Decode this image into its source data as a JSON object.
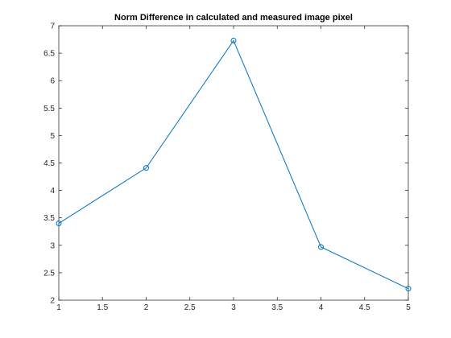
{
  "chart_data": {
    "type": "line",
    "title": "Norm Difference in calculated and measured image pixel",
    "xlabel": "",
    "ylabel": "",
    "xlim": [
      1,
      5
    ],
    "ylim": [
      2,
      7
    ],
    "xticks": [
      1,
      1.5,
      2,
      2.5,
      3,
      3.5,
      4,
      4.5,
      5
    ],
    "xtick_labels": [
      "1",
      "1.5",
      "2",
      "2.5",
      "3",
      "3.5",
      "4",
      "4.5",
      "5"
    ],
    "yticks": [
      2,
      2.5,
      3,
      3.5,
      4,
      4.5,
      5,
      5.5,
      6,
      6.5,
      7
    ],
    "ytick_labels": [
      "2",
      "2.5",
      "3",
      "3.5",
      "4",
      "4.5",
      "5",
      "5.5",
      "6",
      "6.5",
      "7"
    ],
    "grid": false,
    "marker": "circle",
    "series": [
      {
        "x": [
          1,
          2,
          3,
          4,
          5
        ],
        "values": [
          3.4,
          4.41,
          6.73,
          2.97,
          2.21
        ],
        "color": "#0072bd"
      }
    ]
  }
}
